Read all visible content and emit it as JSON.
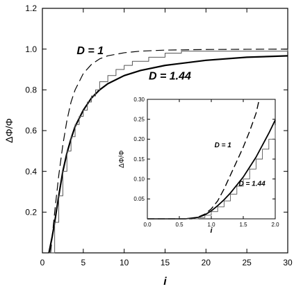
{
  "chart_data": [
    {
      "type": "line",
      "xlabel": "i",
      "ylabel": "ΔΦ/Φ",
      "xlim": [
        0,
        30
      ],
      "ylim": [
        0,
        1.2
      ],
      "x_ticks": [
        "0",
        "5",
        "10",
        "15",
        "20",
        "25",
        "30"
      ],
      "y_ticks": [
        "0.2",
        "0.4",
        "0.6",
        "0.8",
        "1.0",
        "1.2"
      ],
      "grid": false,
      "series": [
        {
          "name": "D = 1",
          "style": "dashed",
          "x": [
            1.0,
            1.5,
            2,
            2.5,
            3,
            3.5,
            4,
            5,
            6,
            7,
            8,
            10,
            12,
            15,
            20,
            25,
            30
          ],
          "y": [
            0.0,
            0.2,
            0.38,
            0.53,
            0.65,
            0.74,
            0.8,
            0.88,
            0.925,
            0.952,
            0.967,
            0.982,
            0.99,
            0.995,
            0.998,
            0.999,
            1.0
          ]
        },
        {
          "name": "D = 1.44",
          "style": "solid-thick",
          "x": [
            0.8,
            1.2,
            1.5,
            2,
            2.5,
            3,
            3.5,
            4,
            5,
            6,
            7,
            8,
            10,
            12,
            15,
            20,
            25,
            30
          ],
          "y": [
            0.0,
            0.08,
            0.15,
            0.28,
            0.4,
            0.49,
            0.56,
            0.62,
            0.7,
            0.76,
            0.8,
            0.83,
            0.87,
            0.895,
            0.92,
            0.945,
            0.96,
            0.967
          ]
        },
        {
          "name": "",
          "style": "step-thin",
          "x": [
            0.8,
            1.5,
            2,
            2.5,
            3,
            3.5,
            4,
            4.5,
            5,
            5.5,
            6,
            6.5,
            7,
            8,
            9,
            10,
            11,
            13,
            15,
            17,
            30
          ],
          "y": [
            0.0,
            0.15,
            0.28,
            0.4,
            0.5,
            0.57,
            0.63,
            0.67,
            0.7,
            0.74,
            0.77,
            0.8,
            0.84,
            0.87,
            0.9,
            0.92,
            0.94,
            0.96,
            0.98,
            0.99,
            1.0
          ]
        }
      ],
      "annotations": [
        "D = 1",
        "D = 1.44"
      ]
    },
    {
      "type": "line",
      "xlabel": "i",
      "ylabel": "ΔΦ/Φ",
      "xlim": [
        0,
        2
      ],
      "ylim": [
        0,
        0.3
      ],
      "x_ticks": [
        "0.0",
        "0.5",
        "1.0",
        "1.5",
        "2.0"
      ],
      "y_ticks": [
        "0.05",
        "0.10",
        "0.15",
        "0.20",
        "0.25",
        "0.30"
      ],
      "grid": false,
      "series": [
        {
          "name": "D = 1",
          "style": "dashed",
          "x": [
            0,
            0.7,
            0.8,
            0.9,
            1.0,
            1.1,
            1.2,
            1.3,
            1.4,
            1.5,
            1.6,
            1.7,
            1.75
          ],
          "y": [
            0,
            0.0,
            0.005,
            0.012,
            0.025,
            0.045,
            0.075,
            0.11,
            0.145,
            0.18,
            0.22,
            0.265,
            0.3
          ]
        },
        {
          "name": "D = 1.44",
          "style": "solid-thick",
          "x": [
            0,
            0.6,
            0.8,
            0.9,
            1.0,
            1.1,
            1.2,
            1.3,
            1.4,
            1.5,
            1.6,
            1.7,
            1.8,
            1.9,
            2.0
          ],
          "y": [
            0,
            0.0,
            0.004,
            0.01,
            0.02,
            0.033,
            0.048,
            0.065,
            0.085,
            0.105,
            0.13,
            0.155,
            0.185,
            0.215,
            0.248
          ]
        },
        {
          "name": "",
          "style": "step-thin",
          "x": [
            0,
            0.6,
            0.8,
            0.9,
            1.0,
            1.1,
            1.2,
            1.3,
            1.4,
            1.5,
            1.6,
            1.7,
            1.8,
            1.9,
            2.0
          ],
          "y": [
            0,
            0.0,
            0.003,
            0.009,
            0.018,
            0.03,
            0.045,
            0.062,
            0.082,
            0.1,
            0.125,
            0.15,
            0.175,
            0.2,
            0.235
          ]
        }
      ],
      "annotations": [
        "D = 1",
        "D = 1.44"
      ]
    }
  ]
}
